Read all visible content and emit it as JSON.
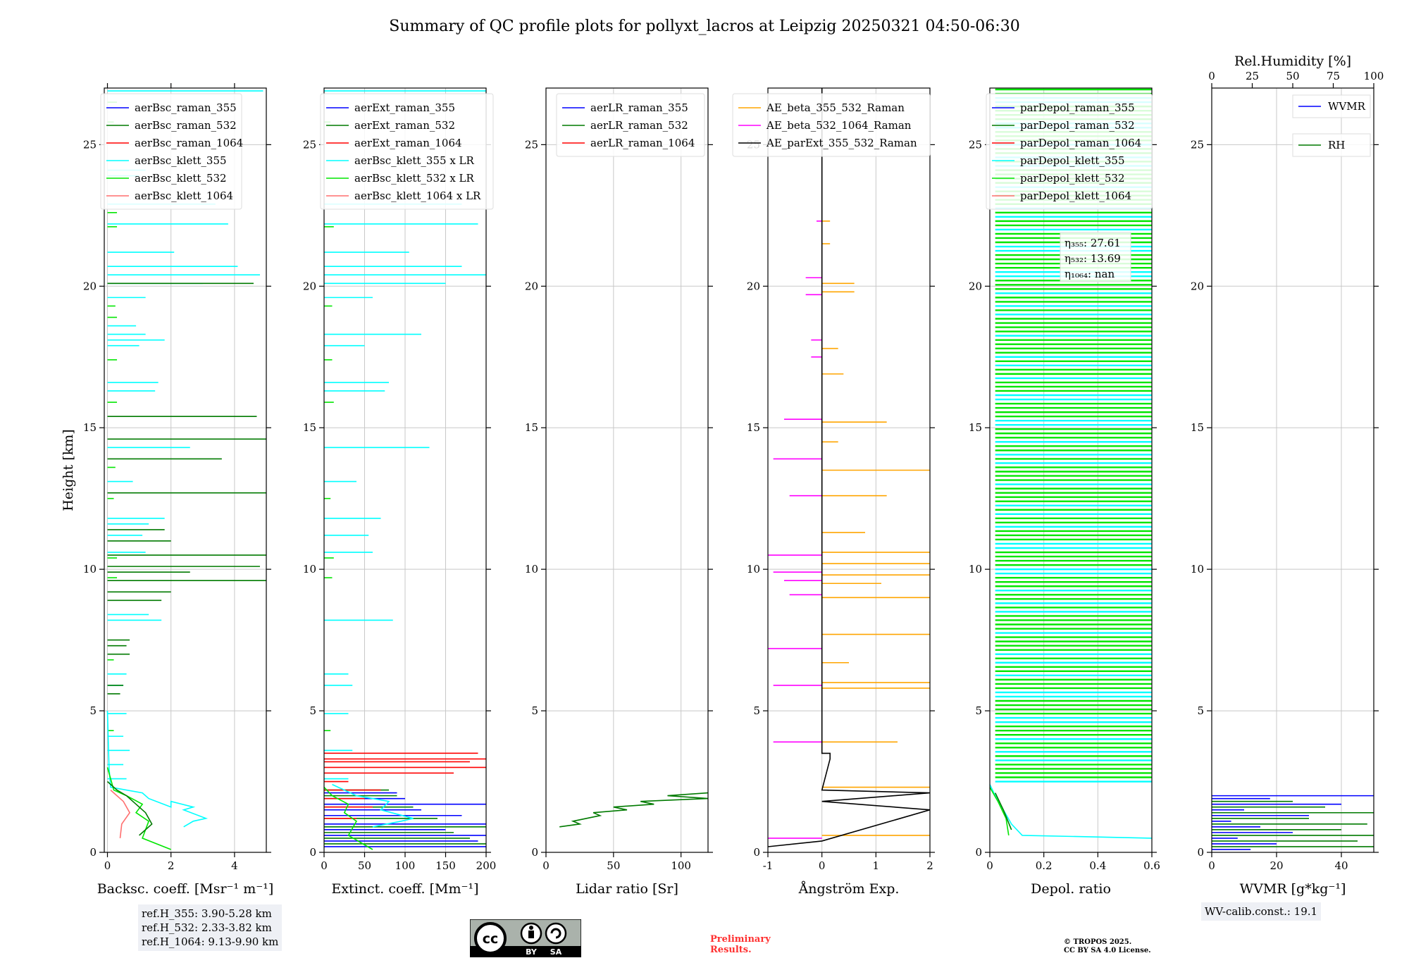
{
  "figure_title": "Summary of QC profile plots for pollyxt_lacros at Leipzig 20250321 04:50-06:30",
  "colors": {
    "blue": "#0000ff",
    "darkgreen": "#007a00",
    "red": "#ff0000",
    "cyan": "#00ffff",
    "lime": "#00e600",
    "salmon": "#ff6f6f",
    "orange": "#ffa500",
    "magenta": "#ff00ff",
    "black": "#000000",
    "grid": "#c8c8c8"
  },
  "ref_heights": [
    "ref.H_355: 3.90-5.28 km",
    "ref.H_532: 2.33-3.82 km",
    "ref.H_1064: 9.13-9.90 km"
  ],
  "wv_calib": "WV-calib.const.: 19.1",
  "license_badge": {
    "cc": "cc",
    "by": "BY",
    "sa": "SA"
  },
  "preliminary": [
    "Preliminary",
    "Results."
  ],
  "copyright": [
    "© TROPOS 2025.",
    "CC BY SA 4.0 License."
  ],
  "chart_data": [
    {
      "type": "line",
      "id": "backscatter",
      "xlabel": "Backsc. coeff. [Msr⁻¹ m⁻¹]",
      "ylabel": "Height [km]",
      "xlim": [
        -0.1,
        5
      ],
      "ylim": [
        0,
        27
      ],
      "xticks": [
        0,
        2,
        4
      ],
      "yticks": [
        0,
        5,
        10,
        15,
        20,
        25
      ],
      "legend": [
        "aerBsc_raman_355",
        "aerBsc_raman_532",
        "aerBsc_raman_1064",
        "aerBsc_klett_355",
        "aerBsc_klett_532",
        "aerBsc_klett_1064"
      ],
      "legend_colors": [
        "blue",
        "darkgreen",
        "red",
        "cyan",
        "lime",
        "salmon"
      ],
      "series": [
        {
          "name": "aerBsc_klett_355",
          "color": "cyan",
          "x": [
            2.4,
            2.7,
            3.1,
            2.4,
            2.7,
            2.0,
            2.0,
            1.3,
            1.1,
            0.1,
            0.05,
            0.0
          ],
          "y": [
            0.9,
            1.1,
            1.2,
            1.5,
            1.6,
            1.8,
            1.6,
            1.9,
            2.1,
            2.3,
            3,
            5
          ]
        },
        {
          "name": "aerBsc_klett_532",
          "color": "lime",
          "x": [
            2.0,
            1.1,
            1.3,
            0.9,
            1.1,
            0.6,
            0.2,
            0.0
          ],
          "y": [
            0.1,
            0.5,
            1.1,
            1.4,
            1.7,
            2.0,
            2.2,
            3
          ]
        },
        {
          "name": "aerBsc_raman_532",
          "color": "darkgreen",
          "x": [
            1.0,
            1.4,
            1.2,
            0.9,
            0.6,
            0.3,
            0.0
          ],
          "y": [
            0.6,
            1.0,
            1.4,
            1.7,
            2.0,
            2.2,
            2.5
          ]
        },
        {
          "name": "aerBsc_klett_1064",
          "color": "salmon",
          "x": [
            0.4,
            0.45,
            0.7,
            0.5,
            0.1
          ],
          "y": [
            0.5,
            1.0,
            1.4,
            1.8,
            2.2
          ]
        }
      ],
      "spikes": [
        {
          "color": "cyan",
          "y": [
            2.6,
            3.1,
            3.6,
            4.1,
            4.9,
            5.9,
            6.3,
            8.2,
            8.4,
            10.6,
            11.2,
            11.6,
            11.8,
            13.1,
            14.3,
            16.3,
            16.6,
            17.9,
            18.1,
            18.3,
            18.6,
            19.6,
            20.1,
            20.4,
            20.7,
            21.2,
            22.2,
            22.9,
            23.9,
            24.1,
            26.9
          ],
          "x": [
            0.6,
            0.5,
            0.7,
            0.5,
            0.6,
            0.5,
            0.6,
            1.7,
            1.3,
            1.2,
            1.1,
            1.3,
            1.8,
            0.8,
            2.6,
            1.5,
            1.6,
            1.0,
            1.8,
            1.2,
            0.9,
            1.2,
            3.0,
            4.8,
            4.1,
            2.1,
            3.8,
            3.4,
            1.0,
            1.2,
            4.9
          ]
        },
        {
          "color": "darkgreen",
          "y": [
            5.6,
            5.9,
            7.0,
            7.3,
            7.5,
            8.9,
            9.2,
            9.6,
            9.9,
            10.1,
            10.5,
            11.0,
            11.4,
            12.7,
            13.9,
            14.6,
            15.4,
            20.1
          ],
          "x": [
            0.4,
            0.5,
            0.7,
            0.6,
            0.7,
            1.7,
            2.0,
            5.0,
            2.6,
            4.8,
            5.0,
            2.0,
            1.8,
            5.0,
            3.6,
            5.0,
            4.7,
            4.6
          ]
        },
        {
          "color": "lime",
          "y": [
            4.3,
            6.8,
            9.7,
            10.4,
            12.5,
            13.6,
            15.9,
            17.4,
            18.9,
            19.3,
            22.1,
            22.6,
            25.8,
            26.5
          ],
          "x": [
            0.2,
            0.2,
            0.3,
            0.3,
            0.2,
            0.25,
            0.3,
            0.3,
            0.3,
            0.25,
            0.3,
            0.3,
            0.2,
            0.3
          ]
        }
      ]
    },
    {
      "type": "line",
      "id": "extinction",
      "xlabel": "Extinct. coeff. [Mm⁻¹]",
      "xlim": [
        0,
        200
      ],
      "ylim": [
        0,
        27
      ],
      "xticks": [
        0,
        50,
        100,
        150,
        200
      ],
      "yticks": [
        0,
        5,
        10,
        15,
        20,
        25
      ],
      "legend": [
        "aerExt_raman_355",
        "aerExt_raman_532",
        "aerExt_raman_1064",
        "aerBsc_klett_355 x LR",
        "aerBsc_klett_532 x LR",
        "aerBsc_klett_1064 x LR"
      ],
      "legend_colors": [
        "blue",
        "darkgreen",
        "red",
        "cyan",
        "lime",
        "salmon"
      ],
      "series": [
        {
          "name": "aerBsc_klett_355 x LR",
          "color": "cyan",
          "x": [
            60,
            95,
            110,
            70,
            80,
            40,
            10
          ],
          "y": [
            0.9,
            1.1,
            1.2,
            1.5,
            1.8,
            2.0,
            2.4
          ]
        },
        {
          "name": "aerBsc_klett_532 x LR",
          "color": "lime",
          "x": [
            60,
            30,
            40,
            25,
            30,
            10,
            0
          ],
          "y": [
            0.1,
            0.6,
            1.1,
            1.4,
            1.7,
            2.0,
            2.3
          ]
        }
      ],
      "spikes": [
        {
          "color": "blue",
          "y": [
            0.2,
            0.4,
            0.6,
            0.8,
            1.0,
            1.3,
            1.5,
            1.7,
            1.9,
            2.1
          ],
          "x": [
            200,
            190,
            200,
            150,
            200,
            170,
            120,
            200,
            100,
            90
          ]
        },
        {
          "color": "darkgreen",
          "y": [
            0.3,
            0.5,
            0.7,
            0.9,
            1.2,
            1.6,
            2.0,
            2.2
          ],
          "x": [
            200,
            180,
            160,
            200,
            140,
            110,
            90,
            80
          ]
        },
        {
          "color": "red",
          "y": [
            1.2,
            1.6,
            1.9,
            2.2,
            2.5,
            2.8,
            3.0,
            3.2,
            3.3,
            3.5
          ],
          "x": [
            40,
            60,
            50,
            70,
            30,
            160,
            200,
            180,
            200,
            190
          ]
        },
        {
          "color": "cyan",
          "y": [
            2.6,
            3.6,
            4.9,
            5.9,
            6.3,
            8.2,
            10.6,
            11.2,
            11.8,
            13.1,
            14.3,
            16.3,
            16.6,
            17.9,
            18.3,
            19.6,
            20.1,
            20.4,
            20.7,
            21.2,
            22.2,
            22.9,
            26.9
          ],
          "x": [
            30,
            35,
            30,
            35,
            30,
            85,
            60,
            55,
            70,
            40,
            130,
            75,
            80,
            50,
            120,
            60,
            150,
            200,
            170,
            105,
            190,
            170,
            200
          ]
        },
        {
          "color": "lime",
          "y": [
            4.3,
            9.7,
            10.4,
            12.5,
            15.9,
            17.4,
            19.3,
            22.1,
            25.8
          ],
          "x": [
            8,
            10,
            12,
            8,
            12,
            10,
            10,
            12,
            8
          ]
        }
      ]
    },
    {
      "type": "line",
      "id": "lidar_ratio",
      "xlabel": "Lidar ratio [Sr]",
      "xlim": [
        0,
        120
      ],
      "ylim": [
        0,
        27
      ],
      "xticks": [
        0,
        50,
        100
      ],
      "yticks": [
        0,
        5,
        10,
        15,
        20,
        25
      ],
      "legend": [
        "aerLR_raman_355",
        "aerLR_raman_532",
        "aerLR_raman_1064"
      ],
      "legend_colors": [
        "blue",
        "darkgreen",
        "red"
      ],
      "series": [
        {
          "name": "aerLR_raman_532",
          "color": "darkgreen",
          "x": [
            10,
            25,
            20,
            40,
            35,
            60,
            50,
            80,
            70,
            120,
            90,
            120
          ],
          "y": [
            0.9,
            1.0,
            1.1,
            1.3,
            1.4,
            1.5,
            1.6,
            1.7,
            1.8,
            1.9,
            2.0,
            2.1
          ]
        }
      ],
      "spikes": []
    },
    {
      "type": "line",
      "id": "angstrom",
      "xlabel": "Ångström Exp.",
      "xlim": [
        -1,
        2
      ],
      "ylim": [
        0,
        27
      ],
      "xticks": [
        -1,
        0,
        1,
        2
      ],
      "yticks": [
        0,
        5,
        10,
        15,
        20,
        25
      ],
      "legend": [
        "AE_beta_355_532_Raman",
        "AE_beta_532_1064_Raman",
        "AE_parExt_355_532_Raman"
      ],
      "legend_colors": [
        "orange",
        "magenta",
        "black"
      ],
      "series": [
        {
          "name": "AE_parExt_355_532_Raman",
          "color": "black",
          "x": [
            -1,
            0,
            2,
            0,
            2,
            0,
            0.15,
            0.15,
            0,
            0
          ],
          "y": [
            0.2,
            0.4,
            1.5,
            1.8,
            2.1,
            2.2,
            3.3,
            3.5,
            3.5,
            27
          ]
        }
      ],
      "spikes": [
        {
          "color": "orange",
          "y": [
            0.6,
            2.3,
            3.9,
            5.8,
            6.0,
            6.7,
            7.7,
            9.0,
            9.5,
            9.8,
            10.2,
            10.6,
            11.3,
            12.6,
            13.5,
            14.5,
            15.2,
            16.9,
            17.8,
            19.8,
            20.1,
            21.5,
            22.3
          ],
          "x": [
            2,
            2,
            1.4,
            2,
            2,
            0.5,
            2,
            2,
            1.1,
            2,
            2,
            2,
            0.8,
            1.2,
            2.3,
            0.3,
            1.2,
            0.4,
            0.3,
            0.6,
            0.6,
            0.15,
            0.15
          ]
        },
        {
          "color": "magenta",
          "y": [
            0.5,
            3.9,
            5.9,
            7.2,
            9.1,
            9.6,
            9.9,
            10.5,
            12.6,
            13.9,
            15.3,
            17.5,
            18.1,
            19.7,
            20.3,
            22.3
          ],
          "x": [
            -1,
            -0.9,
            -0.9,
            -1,
            -0.6,
            -0.7,
            -0.9,
            -1,
            -0.6,
            -0.9,
            -0.7,
            -0.2,
            -0.2,
            -0.3,
            -0.3,
            -0.1
          ]
        }
      ]
    },
    {
      "type": "line",
      "id": "depol",
      "xlabel": "Depol. ratio",
      "xlim": [
        0,
        0.6
      ],
      "ylim": [
        0,
        27
      ],
      "xticks": [
        0,
        0.2,
        0.4,
        0.6
      ],
      "yticks": [
        0,
        5,
        10,
        15,
        20,
        25
      ],
      "legend": [
        "parDepol_raman_355",
        "parDepol_raman_532",
        "parDepol_raman_1064",
        "parDepol_klett_355",
        "parDepol_klett_532",
        "parDepol_klett_1064"
      ],
      "legend_colors": [
        "blue",
        "darkgreen",
        "red",
        "cyan",
        "lime",
        "salmon"
      ],
      "annotation": [
        "η₃₅₅: 27.61",
        "η₅₃₂: 13.69",
        "η₁₀₆₄: nan"
      ],
      "series": [
        {
          "name": "parDepol_klett_355",
          "color": "cyan",
          "x": [
            0.6,
            0.12,
            0.08,
            0.05,
            0.02,
            0.0
          ],
          "y": [
            0.5,
            0.6,
            1.0,
            1.5,
            2.0,
            2.4
          ]
        },
        {
          "name": "parDepol_klett_532",
          "color": "lime",
          "x": [
            0.07,
            0.06,
            0.03,
            0.0
          ],
          "y": [
            0.6,
            1.2,
            1.8,
            2.3
          ]
        },
        {
          "name": "parDepol_raman_532",
          "color": "darkgreen",
          "x": [
            0.08,
            0.05,
            0.02
          ],
          "y": [
            0.8,
            1.5,
            2.1
          ]
        }
      ],
      "spikes": [],
      "fill_bands": {
        "y_from": 2.5,
        "y_to": 27,
        "step": 0.15,
        "colors": [
          "lime",
          "cyan"
        ]
      }
    },
    {
      "type": "line",
      "id": "wvmr",
      "xlabel": "WVMR [g*kg⁻¹]",
      "top_xlabel": "Rel.Humidity [%]",
      "xlim": [
        0,
        50
      ],
      "ylim": [
        0,
        27
      ],
      "xticks": [
        0,
        20,
        40
      ],
      "yticks": [
        0,
        5,
        10,
        15,
        20,
        25
      ],
      "top_ticks": [
        0,
        25,
        50,
        75,
        100
      ],
      "legend": [
        "WVMR",
        "RH"
      ],
      "legend_colors": [
        "blue",
        "darkgreen"
      ],
      "series": [],
      "spikes": [
        {
          "color": "blue",
          "y": [
            0.1,
            0.3,
            0.5,
            0.7,
            0.9,
            1.1,
            1.3,
            1.5,
            1.7,
            1.9,
            2.0
          ],
          "x": [
            12,
            20,
            8,
            25,
            15,
            6,
            30,
            10,
            40,
            18,
            50
          ]
        },
        {
          "color": "darkgreen",
          "y": [
            0.2,
            0.4,
            0.6,
            0.8,
            1.0,
            1.2,
            1.4,
            1.6,
            1.8
          ],
          "x": [
            50,
            45,
            50,
            40,
            48,
            30,
            50,
            35,
            25
          ]
        }
      ]
    }
  ]
}
